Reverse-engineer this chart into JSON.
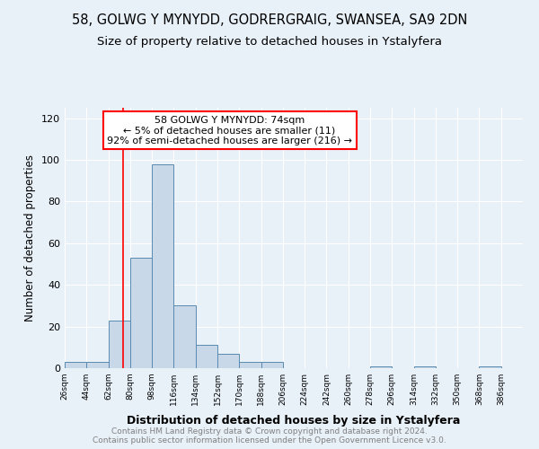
{
  "title1": "58, GOLWG Y MYNYDD, GODRERGRAIG, SWANSEA, SA9 2DN",
  "title2": "Size of property relative to detached houses in Ystalyfera",
  "xlabel": "Distribution of detached houses by size in Ystalyfera",
  "ylabel": "Number of detached properties",
  "bin_labels": [
    "26sqm",
    "44sqm",
    "62sqm",
    "80sqm",
    "98sqm",
    "116sqm",
    "134sqm",
    "152sqm",
    "170sqm",
    "188sqm",
    "206sqm",
    "224sqm",
    "242sqm",
    "260sqm",
    "278sqm",
    "296sqm",
    "314sqm",
    "332sqm",
    "350sqm",
    "368sqm",
    "386sqm"
  ],
  "bin_edges": [
    26,
    44,
    62,
    80,
    98,
    116,
    134,
    152,
    170,
    188,
    206,
    224,
    242,
    260,
    278,
    296,
    314,
    332,
    350,
    368,
    386
  ],
  "bar_heights": [
    3,
    3,
    23,
    53,
    98,
    30,
    11,
    7,
    3,
    3,
    0,
    0,
    0,
    0,
    1,
    0,
    1,
    0,
    0,
    1
  ],
  "bar_color": "#c8d8e8",
  "bar_edge_color": "#5a8ab0",
  "property_size": 74,
  "red_line_x": 74,
  "annotation_line1": "58 GOLWG Y MYNYDD: 74sqm",
  "annotation_line2": "← 5% of detached houses are smaller (11)",
  "annotation_line3": "92% of semi-detached houses are larger (216) →",
  "annotation_box_color": "white",
  "annotation_box_edge_color": "red",
  "ylim": [
    0,
    125
  ],
  "yticks": [
    0,
    20,
    40,
    60,
    80,
    100,
    120
  ],
  "footer_text": "Contains HM Land Registry data © Crown copyright and database right 2024.\nContains public sector information licensed under the Open Government Licence v3.0.",
  "background_color": "#e8f0f8",
  "grid_color": "white",
  "title1_fontsize": 10.5,
  "title2_fontsize": 9.5,
  "xlabel_fontsize": 9,
  "ylabel_fontsize": 8.5,
  "footer_fontsize": 6.5,
  "annot_fontsize": 8
}
